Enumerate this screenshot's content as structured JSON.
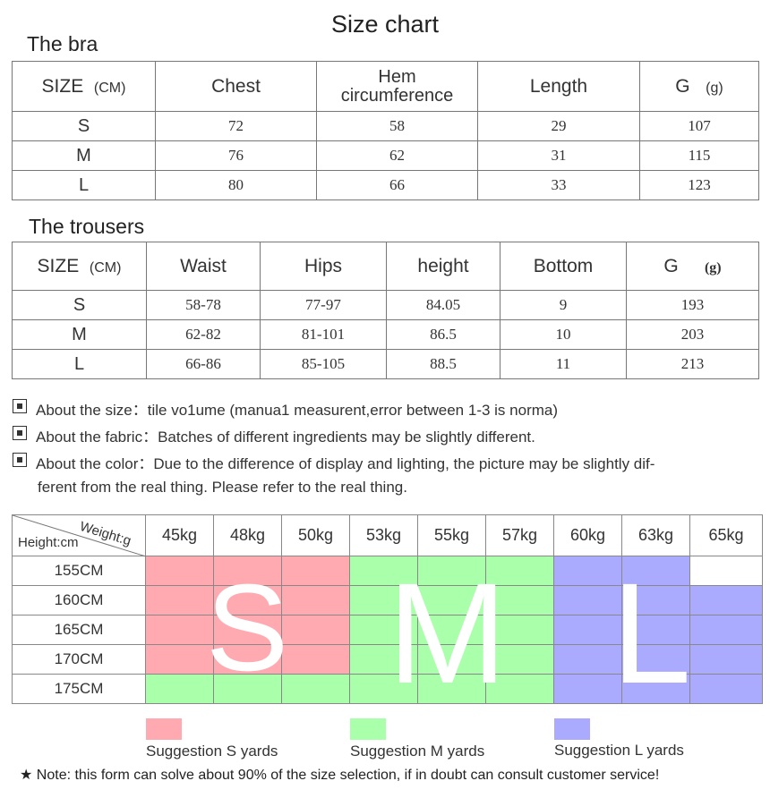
{
  "title": "Size chart",
  "bra": {
    "section_title": "The bra",
    "headers": {
      "size": "SIZE",
      "size_unit": "(CM)",
      "chest": "Chest",
      "hem_line1": "Hem",
      "hem_line2": "circumference",
      "length": "Length",
      "g": "G",
      "g_unit": "(g)"
    },
    "rows": [
      {
        "size": "S",
        "chest": "72",
        "hem": "58",
        "length": "29",
        "g": "107"
      },
      {
        "size": "M",
        "chest": "76",
        "hem": "62",
        "length": "31",
        "g": "115"
      },
      {
        "size": "L",
        "chest": "80",
        "hem": "66",
        "length": "33",
        "g": "123"
      }
    ]
  },
  "trousers": {
    "section_title": "The trousers",
    "headers": {
      "size": "SIZE",
      "size_unit": "(CM)",
      "waist": "Waist",
      "hips": "Hips",
      "height": "height",
      "bottom": "Bottom",
      "g": "G",
      "g_unit": "(g)"
    },
    "rows": [
      {
        "size": "S",
        "waist": "58-78",
        "hips": "77-97",
        "height": "84.05",
        "bottom": "9",
        "g": "193"
      },
      {
        "size": "M",
        "waist": "62-82",
        "hips": "81-101",
        "height": "86.5",
        "bottom": "10",
        "g": "203"
      },
      {
        "size": "L",
        "waist": "66-86",
        "hips": "85-105",
        "height": "88.5",
        "bottom": "11",
        "g": "213"
      }
    ]
  },
  "notes": {
    "size": "About the size：tile vo1ume (manua1 measurent,error between 1-3 is norma)",
    "fabric": "About the fabric：Batches of different ingredients may be slightly different.",
    "color_line1": "About the color：Due to the difference of display and lighting, the picture may be slightly dif-",
    "color_line2": "ferent from the real thing. Please refer to the real thing."
  },
  "size_grid": {
    "corner_weight": "Weight:g",
    "corner_height": "Height:cm",
    "weights": [
      "45kg",
      "48kg",
      "50kg",
      "53kg",
      "55kg",
      "57kg",
      "60kg",
      "63kg",
      "65kg"
    ],
    "heights": [
      "155CM",
      "160CM",
      "165CM",
      "170CM",
      "175CM"
    ],
    "cells": [
      [
        "S",
        "S",
        "S",
        "M",
        "M",
        "M",
        "L",
        "L",
        ""
      ],
      [
        "S",
        "S",
        "S",
        "M",
        "M",
        "M",
        "L",
        "L",
        "L"
      ],
      [
        "S",
        "S",
        "S",
        "M",
        "M",
        "M",
        "L",
        "L",
        "L"
      ],
      [
        "S",
        "S",
        "S",
        "M",
        "M",
        "M",
        "L",
        "L",
        "L"
      ],
      [
        "M",
        "M",
        "M",
        "M",
        "M",
        "M",
        "L",
        "L",
        "L"
      ]
    ],
    "big_letters": {
      "s": "S",
      "m": "M",
      "l": "L"
    },
    "colors": {
      "S": "#ffaab0",
      "M": "#aaffaa",
      "L": "#aaaaff",
      "empty": "#ffffff"
    }
  },
  "legend": {
    "s": "Suggestion S yards",
    "m": "Suggestion M yards",
    "l": "Suggestion L yards"
  },
  "footer": {
    "star": "★",
    "text": "Note: this form can solve about 90% of the size selection, if in doubt can consult customer service!"
  }
}
